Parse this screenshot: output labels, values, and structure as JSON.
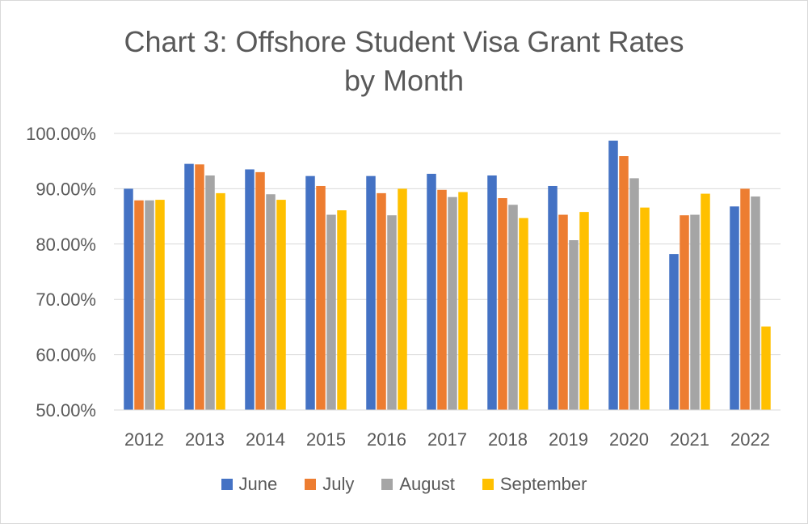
{
  "title_line1": "Chart 3: Offshore Student Visa Grant Rates",
  "title_line2": "by Month",
  "chart_data": {
    "type": "bar",
    "title": "Chart 3: Offshore Student Visa Grant Rates by Month",
    "xlabel": "",
    "ylabel": "",
    "ylim": [
      50,
      100
    ],
    "yticks": [
      "50.00%",
      "60.00%",
      "70.00%",
      "80.00%",
      "90.00%",
      "100.00%"
    ],
    "grid": true,
    "legend_position": "bottom",
    "categories": [
      "2012",
      "2013",
      "2014",
      "2015",
      "2016",
      "2017",
      "2018",
      "2019",
      "2020",
      "2021",
      "2022"
    ],
    "series": [
      {
        "name": "June",
        "color": "#4472C4",
        "values": [
          90.0,
          94.5,
          93.5,
          92.3,
          92.3,
          92.7,
          92.4,
          90.5,
          98.7,
          78.2,
          86.8
        ]
      },
      {
        "name": "July",
        "color": "#ED7D31",
        "values": [
          87.9,
          94.4,
          93.0,
          90.5,
          89.2,
          89.8,
          88.3,
          85.3,
          95.9,
          85.2,
          90.0
        ]
      },
      {
        "name": "August",
        "color": "#A5A5A5",
        "values": [
          87.9,
          92.4,
          89.0,
          85.3,
          85.2,
          88.5,
          87.1,
          80.7,
          91.9,
          85.3,
          88.6
        ]
      },
      {
        "name": "September",
        "color": "#FFC000",
        "values": [
          88.0,
          89.2,
          88.0,
          86.1,
          90.0,
          89.4,
          84.7,
          85.8,
          86.6,
          89.1,
          65.1
        ]
      }
    ]
  }
}
